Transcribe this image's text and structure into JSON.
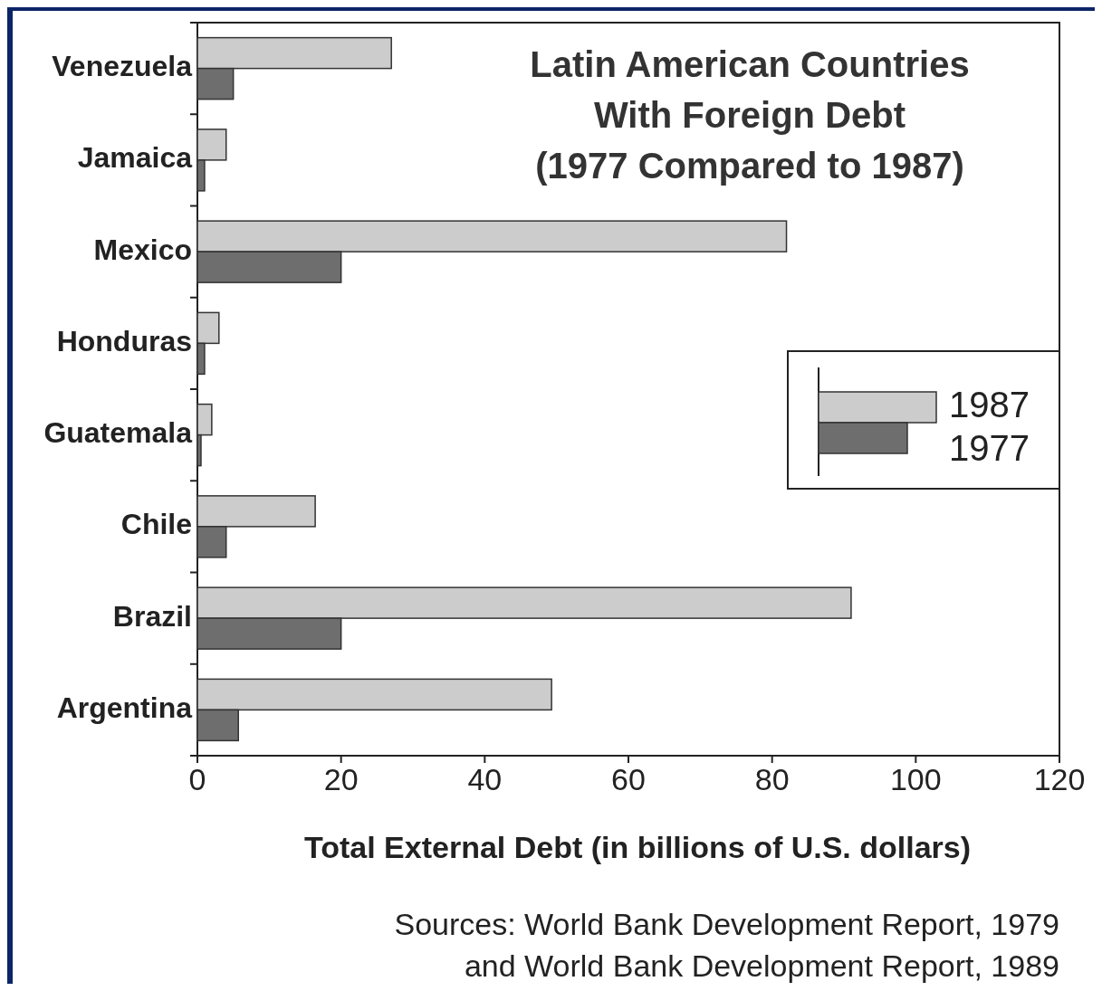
{
  "chart_data": {
    "type": "bar",
    "orientation": "horizontal",
    "title": "Latin American Countries With Foreign Debt (1977 Compared to 1987)",
    "xlabel": "Total External Debt (in billions of U.S. dollars)",
    "categories": [
      "Venezuela",
      "Jamaica",
      "Mexico",
      "Honduras",
      "Guatemala",
      "Chile",
      "Brazil",
      "Argentina"
    ],
    "series": [
      {
        "name": "1987",
        "color": "#cccccc",
        "values": [
          27,
          4,
          82,
          3,
          2,
          16.4,
          91,
          49.3
        ]
      },
      {
        "name": "1977",
        "color": "#6e6e6e",
        "values": [
          5,
          1,
          20,
          1,
          0.5,
          4,
          20,
          5.7
        ]
      }
    ],
    "xlim": [
      0,
      120
    ],
    "xticks": [
      0,
      20,
      40,
      60,
      80,
      100,
      120
    ],
    "grid": false,
    "legend": "right",
    "annotations": [
      "Sources: World Bank Development Report, 1979",
      "and World Bank Development Report, 1989"
    ]
  }
}
